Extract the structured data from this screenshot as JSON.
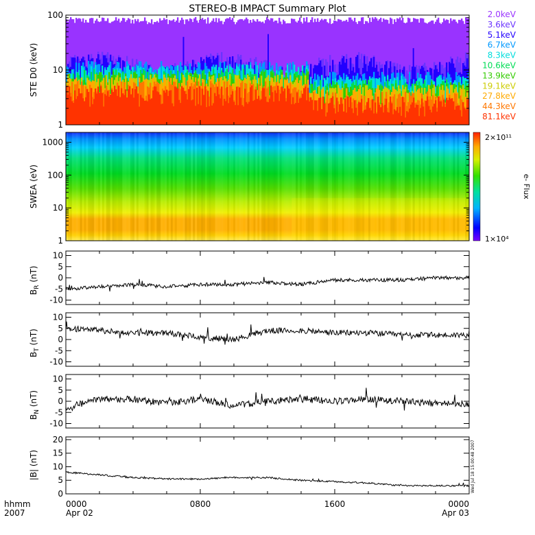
{
  "title": "STEREO-B IMPACT Summary Plot",
  "footer": {
    "line1": "hhmm",
    "line2": "2007",
    "timestamp": "Wed Jul 18 15:00:48 2007"
  },
  "colors": {
    "frame": "#000000",
    "trace": "#000000"
  },
  "chart_data": [
    {
      "type": "area",
      "id": "ste",
      "ylabel": "STE D0 (keV)",
      "yscale": "log",
      "ylim": [
        1,
        100
      ],
      "yticks": [
        "1",
        "10",
        "100"
      ],
      "x_ticks": [
        "0000",
        "0800",
        "1600",
        "0000"
      ],
      "x_dates": [
        "Apr 02",
        "",
        "",
        "Apr 03"
      ],
      "series": [
        {
          "name": "2.0keV",
          "color": "#9933ff",
          "level": 80
        },
        {
          "name": "3.6keV",
          "color": "#6a33ff",
          "level": 12
        },
        {
          "name": "5.1keV",
          "color": "#2200ff",
          "level": 11
        },
        {
          "name": "6.7keV",
          "color": "#0099ff",
          "level": 7
        },
        {
          "name": "8.3keV",
          "color": "#00dddd",
          "level": 6
        },
        {
          "name": "10.6keV",
          "color": "#00dd55",
          "level": 5
        },
        {
          "name": "13.9keV",
          "color": "#33cc00",
          "level": 4.5
        },
        {
          "name": "19.1keV",
          "color": "#cccc00",
          "level": 4
        },
        {
          "name": "27.8keV",
          "color": "#ffaa00",
          "level": 3.5
        },
        {
          "name": "44.3keV",
          "color": "#ff7700",
          "level": 3
        },
        {
          "name": "81.1keV",
          "color": "#ff3300",
          "level": 2.5
        }
      ]
    },
    {
      "type": "heatmap",
      "id": "swea",
      "ylabel": "SWEA (eV)",
      "yscale": "log",
      "ylim": [
        1,
        2000
      ],
      "yticks": [
        "1",
        "10",
        "100",
        "1000"
      ],
      "colorbar": {
        "label": "e- Flux",
        "max": "2×10¹¹",
        "min": "1×10⁴"
      }
    },
    {
      "type": "line",
      "id": "br",
      "ylabel": "B_R (nT)",
      "ylim": [
        -12,
        12
      ],
      "yticks": [
        "-10",
        "-5",
        "0",
        "5",
        "10"
      ],
      "x": [
        0,
        2,
        4,
        6,
        8,
        10,
        12,
        14,
        16,
        18,
        20,
        22,
        24
      ],
      "values": [
        -5,
        -4,
        -3,
        -4,
        -3,
        -3,
        -2,
        -3,
        -1,
        -1,
        -1,
        0,
        0
      ]
    },
    {
      "type": "line",
      "id": "bt",
      "ylabel": "B_T (nT)",
      "ylim": [
        -12,
        12
      ],
      "yticks": [
        "-10",
        "-5",
        "0",
        "5",
        "10"
      ],
      "x": [
        0,
        2,
        4,
        6,
        8,
        10,
        12,
        14,
        16,
        18,
        20,
        22,
        24
      ],
      "values": [
        5,
        4,
        3,
        3,
        1,
        0,
        4,
        4,
        3,
        3,
        2,
        2,
        2
      ]
    },
    {
      "type": "line",
      "id": "bn",
      "ylabel": "B_N (nT)",
      "ylim": [
        -12,
        12
      ],
      "yticks": [
        "-10",
        "-5",
        "0",
        "5",
        "10"
      ],
      "x": [
        0,
        2,
        4,
        6,
        8,
        10,
        12,
        14,
        16,
        18,
        20,
        22,
        24
      ],
      "values": [
        -3,
        1,
        1,
        -1,
        1,
        -2,
        0,
        1,
        0,
        1,
        0,
        -1,
        -1
      ]
    },
    {
      "type": "line",
      "id": "bmag",
      "ylabel": "|B| (nT)",
      "ylim": [
        0,
        21
      ],
      "yticks": [
        "0",
        "5",
        "10",
        "15",
        "20"
      ],
      "x": [
        0,
        2,
        4,
        6,
        8,
        10,
        12,
        14,
        16,
        18,
        20,
        22,
        24
      ],
      "values": [
        8,
        7,
        6,
        5.5,
        5.5,
        6,
        6,
        5,
        4.5,
        4,
        3,
        3,
        3
      ]
    }
  ]
}
